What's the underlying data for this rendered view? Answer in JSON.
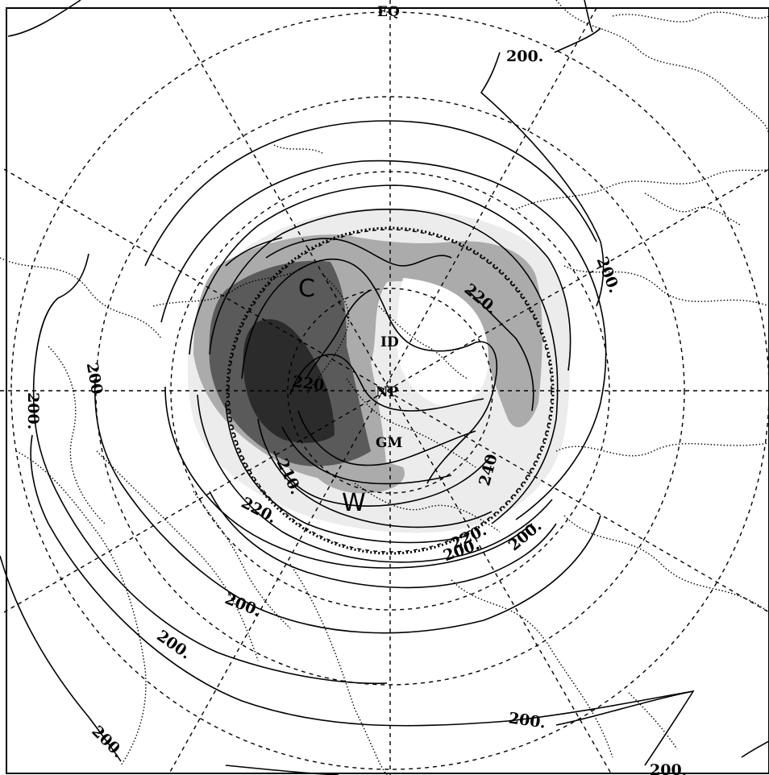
{
  "map": {
    "projection": "polar stereographic",
    "colors": {
      "background": "#ffffff",
      "shade_light": "#ececec",
      "shade_medium": "#ababab",
      "shade_dark": "#5a5a5a",
      "shade_darkest": "#2b2b2b",
      "lines": "#000000"
    },
    "markers": {
      "equator": "EQ",
      "north_pole": "NP",
      "international_date_line": "ID",
      "greenwich_meridian": "GM"
    },
    "regions": {
      "cold": "C",
      "warm": "W"
    },
    "contour_labels": [
      "200.",
      "200.",
      "200.",
      "200.",
      "200.",
      "200.",
      "200.",
      "200.",
      "200.",
      "200.",
      "200",
      "210.",
      "220.",
      "220.",
      "220.",
      "220.",
      "240"
    ]
  }
}
